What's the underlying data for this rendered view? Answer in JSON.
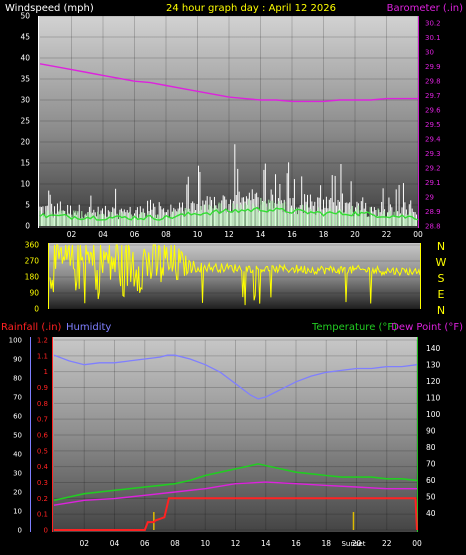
{
  "header": {
    "left_label": "Windspeed (mph)",
    "title": "24 hour graph day : April 12 2026",
    "right_label": "Barometer (.in)"
  },
  "colors": {
    "wind": "#ffffff",
    "gust": "#ffffff",
    "wind_avg": "#33dd33",
    "barometer": "#dd22dd",
    "direction": "#ffff00",
    "rain": "#ff2222",
    "humidity": "#7f7fff",
    "temperature": "#22cc22",
    "dewpoint": "#dd22dd",
    "sunrise_sunset": "#ddbb00",
    "axis_text": "#ffffff"
  },
  "chart_data": [
    {
      "type": "line",
      "name": "wind_barometer",
      "x_ticks": [
        "02",
        "04",
        "06",
        "08",
        "10",
        "12",
        "14",
        "16",
        "18",
        "20",
        "22",
        "00"
      ],
      "left_axis": {
        "label": "Windspeed (mph)",
        "ylim": [
          0,
          50
        ],
        "ticks": [
          0,
          5,
          10,
          15,
          20,
          25,
          30,
          35,
          40,
          45,
          50
        ]
      },
      "right_axis": {
        "label": "Barometer (.in)",
        "ylim": [
          28.8,
          30.25
        ],
        "ticks": [
          "28.8",
          "28.9",
          "29",
          "29.1",
          "29.2",
          "29.3",
          "29.4",
          "29.5",
          "29.6",
          "29.7",
          "29.8",
          "29.9",
          "30",
          "30.1",
          "30.2"
        ]
      },
      "barometer": {
        "hours": [
          0,
          1,
          2,
          3,
          4,
          5,
          6,
          7,
          8,
          9,
          10,
          11,
          12,
          13,
          14,
          15,
          16,
          17,
          18,
          19,
          20,
          21,
          22,
          23,
          24
        ],
        "values": [
          29.92,
          29.9,
          29.88,
          29.86,
          29.84,
          29.82,
          29.8,
          29.79,
          29.77,
          29.75,
          29.73,
          29.71,
          29.69,
          29.68,
          29.67,
          29.67,
          29.66,
          29.66,
          29.66,
          29.67,
          29.67,
          29.67,
          29.68,
          29.68,
          29.68
        ]
      },
      "wind_profile": {
        "hours": [
          0,
          2,
          4,
          6,
          8,
          10,
          12,
          14,
          16,
          18,
          20,
          22,
          24
        ],
        "base": [
          5,
          4.5,
          4,
          4,
          4,
          6,
          7,
          7.5,
          7,
          6,
          5.5,
          5,
          4.5
        ],
        "gust_peak": [
          11,
          10,
          10,
          9,
          10,
          16,
          22,
          19,
          17,
          15,
          14,
          12,
          10
        ],
        "avg": [
          2.5,
          2.2,
          2,
          2,
          2,
          3,
          3.5,
          4,
          3.5,
          3,
          3,
          2.5,
          2
        ]
      }
    },
    {
      "type": "scatter",
      "name": "wind_direction",
      "x_ticks": [
        "02",
        "04",
        "06",
        "08",
        "10",
        "12",
        "14",
        "16",
        "18",
        "20",
        "22",
        "00"
      ],
      "ylim": [
        0,
        360
      ],
      "y_ticks": [
        0,
        90,
        180,
        270,
        360
      ],
      "compass_labels": [
        "N",
        "W",
        "S",
        "E",
        "N"
      ],
      "profile": {
        "hours": [
          0,
          2,
          4,
          6,
          8,
          9,
          10,
          12,
          14,
          16,
          18,
          20,
          22,
          24
        ],
        "center": [
          250,
          260,
          270,
          260,
          250,
          240,
          235,
          230,
          225,
          225,
          220,
          220,
          215,
          210
        ],
        "spread": [
          160,
          170,
          180,
          170,
          150,
          40,
          25,
          25,
          20,
          25,
          25,
          25,
          25,
          20
        ]
      }
    },
    {
      "type": "line",
      "name": "rain_humidity_temperature",
      "x_ticks": [
        "02",
        "04",
        "06",
        "08",
        "10",
        "12",
        "14",
        "16",
        "18",
        "20",
        "22",
        "00"
      ],
      "sunrise_hour": 6.6,
      "sunset_hour": 19.8,
      "sunset_label": "Sunset",
      "rain_label": "Rainfall (.in)",
      "humidity_label": "Humidity",
      "temperature_label": "Temperature (°F)",
      "dewpoint_label": "Dew Point (°F)",
      "rain_axis": {
        "ylim": [
          0,
          1.2
        ],
        "ticks": [
          "0",
          "0.1",
          "0.2",
          "0.3",
          "0.4",
          "0.5",
          "0.6",
          "0.7",
          "0.8",
          "0.9",
          "1",
          "1.1",
          "1.2"
        ]
      },
      "humidity_axis": {
        "ylim": [
          0,
          100
        ],
        "ticks": [
          0,
          10,
          20,
          30,
          40,
          50,
          60,
          70,
          80,
          90,
          100
        ]
      },
      "temp_axis": {
        "ylim": [
          30,
          145
        ],
        "ticks": [
          40,
          50,
          60,
          70,
          80,
          90,
          100,
          110,
          120,
          130,
          140
        ]
      },
      "rain": {
        "hours": [
          0,
          6.0,
          6.2,
          6.6,
          6.7,
          7.3,
          7.6,
          23.9,
          24
        ],
        "values": [
          0,
          0,
          0.05,
          0.05,
          0.06,
          0.08,
          0.2,
          0.2,
          0
        ]
      },
      "humidity": {
        "hours": [
          0,
          1,
          2,
          3,
          4,
          5,
          6,
          7,
          7.5,
          8,
          9,
          10,
          11,
          12,
          13,
          13.5,
          14,
          15,
          16,
          17,
          18,
          19,
          20,
          21,
          22,
          23,
          24
        ],
        "values": [
          92,
          89,
          87,
          88,
          88,
          89,
          90,
          91,
          92,
          92,
          90,
          87,
          83,
          77,
          71,
          69,
          70,
          74,
          78,
          81,
          83,
          84,
          85,
          85,
          86,
          86,
          87
        ]
      },
      "temperature": {
        "hours": [
          0,
          1,
          2,
          3,
          4,
          5,
          6,
          7,
          8,
          9,
          10,
          11,
          12,
          13,
          13.5,
          14,
          15,
          16,
          17,
          18,
          19,
          20,
          21,
          22,
          23,
          24
        ],
        "values": [
          48,
          50,
          52,
          53,
          54,
          55,
          56,
          57,
          58,
          60,
          63,
          65,
          67,
          69,
          70,
          69,
          67,
          65,
          64,
          63,
          62,
          62,
          62,
          61,
          61,
          60
        ]
      },
      "dewpoint": {
        "hours": [
          0,
          2,
          4,
          6,
          8,
          10,
          12,
          14,
          16,
          18,
          20,
          22,
          24
        ],
        "values": [
          45,
          48,
          49,
          51,
          53,
          55,
          58,
          59,
          58,
          57,
          56,
          55,
          55
        ]
      }
    }
  ]
}
